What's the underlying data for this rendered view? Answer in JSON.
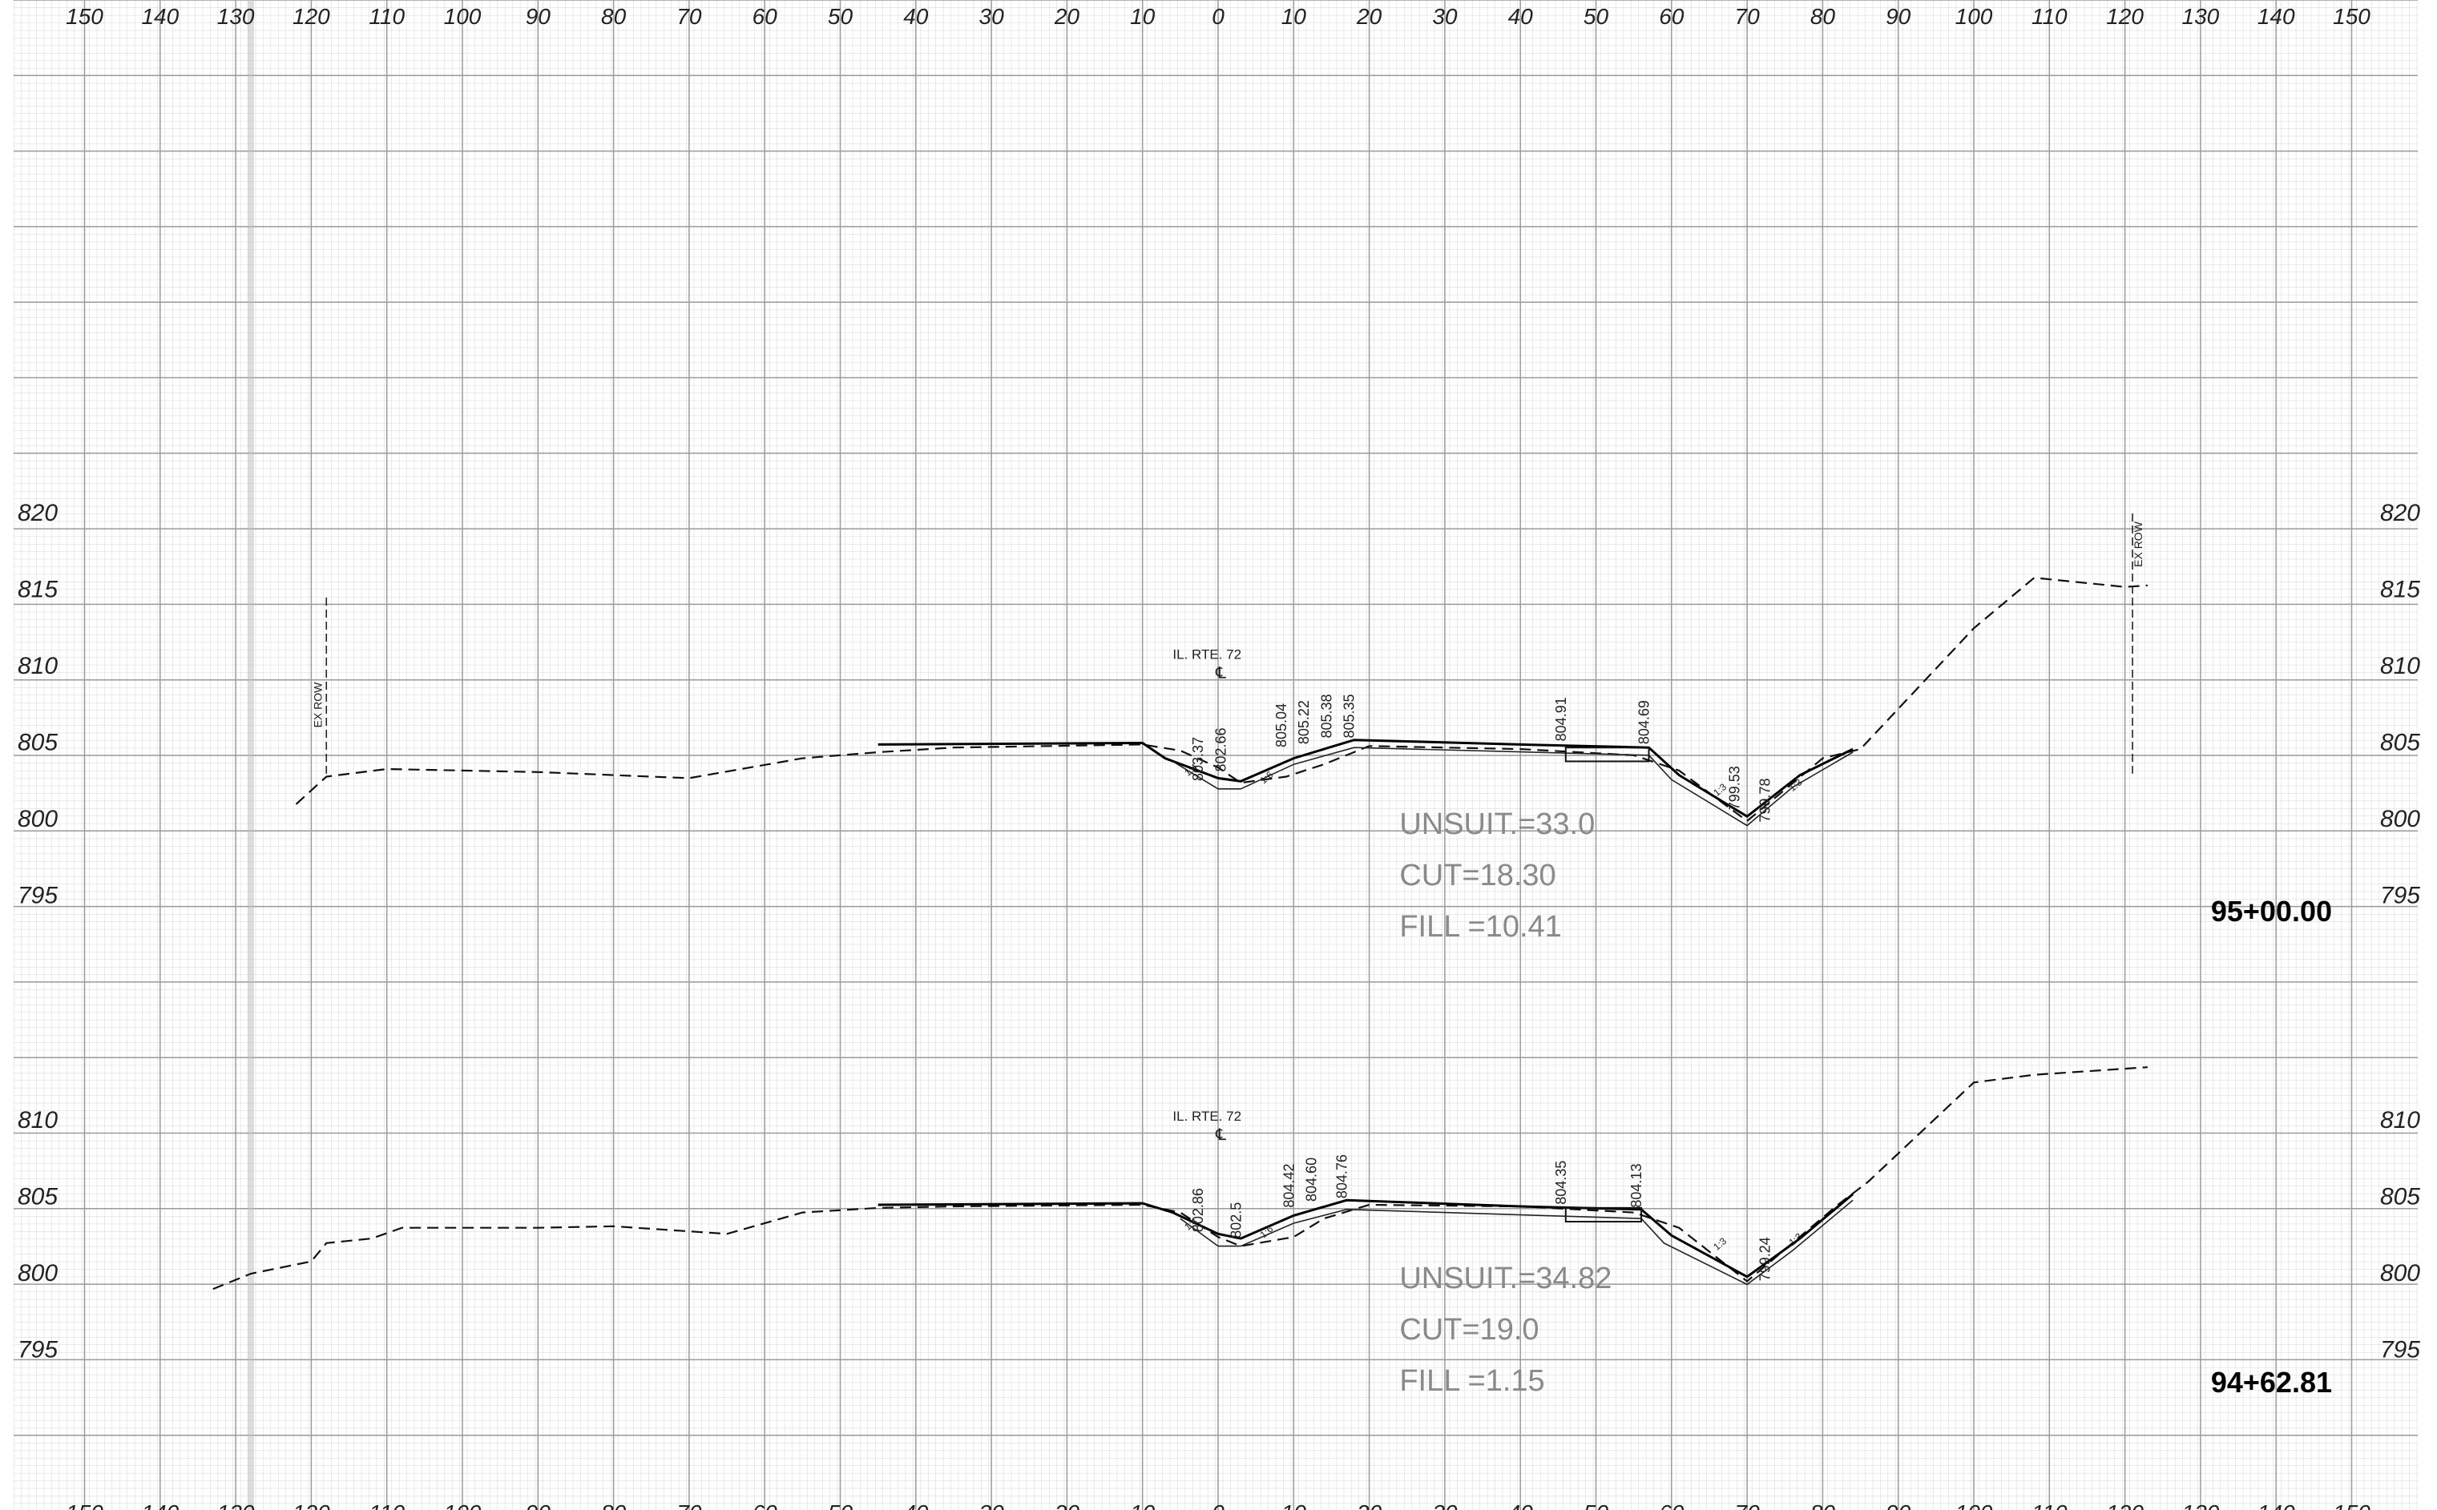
{
  "offset_axis": {
    "labels": [
      "150",
      "140",
      "130",
      "120",
      "110",
      "100",
      "90",
      "80",
      "70",
      "60",
      "50",
      "40",
      "30",
      "20",
      "10",
      "0",
      "10",
      "20",
      "30",
      "40",
      "50",
      "60",
      "70",
      "80",
      "90",
      "100",
      "110",
      "120",
      "130",
      "140",
      "150"
    ],
    "values": [
      -150,
      -140,
      -130,
      -120,
      -110,
      -100,
      -90,
      -80,
      -70,
      -60,
      -50,
      -40,
      -30,
      -20,
      -10,
      0,
      10,
      20,
      30,
      40,
      50,
      60,
      70,
      80,
      90,
      100,
      110,
      120,
      130,
      140,
      150
    ]
  },
  "sections": [
    {
      "station": "95+00.00",
      "elevation_labels": [
        "820",
        "815",
        "810",
        "805",
        "800",
        "795"
      ],
      "elevation_values": [
        820,
        815,
        810,
        805,
        800,
        795
      ],
      "centerline_label": "IL. RTE. 72",
      "centerline_symbol": "℄",
      "row_label": "EX ROW",
      "row_label_right": "EX ROW",
      "quantities": [
        "UNSUIT.=33.0",
        "CUT=18.30",
        "FILL =10.41"
      ],
      "point_labels": [
        {
          "text": "803.37",
          "offset": -2,
          "elev": 802.2
        },
        {
          "text": "802.66",
          "offset": 1,
          "elev": 802.8
        },
        {
          "text": "805.04",
          "offset": 9,
          "elev": 804.4
        },
        {
          "text": "805.22",
          "offset": 12,
          "elev": 804.6
        },
        {
          "text": "805.38",
          "offset": 15,
          "elev": 805.0
        },
        {
          "text": "805.35",
          "offset": 18,
          "elev": 805.0
        },
        {
          "text": "804.91",
          "offset": 46,
          "elev": 804.8
        },
        {
          "text": "804.69",
          "offset": 57,
          "elev": 804.6
        },
        {
          "text": "799.53",
          "offset": 69,
          "elev": 800.3
        },
        {
          "text": "799.78",
          "offset": 73,
          "elev": 799.5
        }
      ],
      "slope_labels": [
        "1:4",
        "1:6",
        "1:3",
        "1:3"
      ],
      "existing_ground": [
        [
          -122,
          801
        ],
        [
          -118,
          802.8
        ],
        [
          -110,
          803.3
        ],
        [
          -90,
          803.1
        ],
        [
          -70,
          802.7
        ],
        [
          -55,
          804.0
        ],
        [
          -45,
          804.4
        ],
        [
          -35,
          804.7
        ],
        [
          -10,
          804.9
        ],
        [
          -5,
          804.5
        ],
        [
          0,
          803.4
        ],
        [
          3,
          802.4
        ],
        [
          9,
          802.8
        ],
        [
          14,
          803.6
        ],
        [
          20,
          804.8
        ],
        [
          40,
          804.6
        ],
        [
          55,
          804.2
        ],
        [
          61,
          803.2
        ],
        [
          70,
          799.9
        ],
        [
          80,
          804.0
        ],
        [
          85,
          804.6
        ],
        [
          100,
          812.5
        ],
        [
          108,
          815.8
        ],
        [
          120,
          815.2
        ],
        [
          123,
          815.3
        ]
      ],
      "proposed_top": [
        [
          -45,
          804.9
        ],
        [
          -10,
          805.0
        ],
        [
          -7,
          804.0
        ],
        [
          0,
          802.7
        ],
        [
          3,
          802.5
        ],
        [
          10,
          804.0
        ],
        [
          18,
          805.2
        ],
        [
          40,
          804.9
        ],
        [
          57,
          804.7
        ],
        [
          61,
          802.9
        ],
        [
          70,
          800.2
        ],
        [
          77,
          802.9
        ],
        [
          84,
          804.6
        ]
      ],
      "proposed_bottom": [
        [
          -6,
          803.8
        ],
        [
          0,
          802.0
        ],
        [
          3,
          802.0
        ],
        [
          10,
          803.6
        ],
        [
          18,
          804.7
        ],
        [
          57,
          804.2
        ],
        [
          60,
          802.6
        ],
        [
          70,
          799.6
        ],
        [
          76,
          802.1
        ],
        [
          84,
          804.4
        ]
      ],
      "pavement_box": {
        "from": 46,
        "to": 57,
        "top": 804.7,
        "bottom": 803.8
      }
    },
    {
      "station": "94+62.81",
      "elevation_labels": [
        "810",
        "805",
        "800",
        "795"
      ],
      "elevation_values": [
        810,
        805,
        800,
        795
      ],
      "centerline_label": "IL. RTE. 72",
      "centerline_symbol": "℄",
      "quantities": [
        "UNSUIT.=34.82",
        "CUT=19.0",
        "FILL =1.15"
      ],
      "point_labels": [
        {
          "text": "802.86",
          "offset": -2,
          "elev": 802.4
        },
        {
          "text": "802.5",
          "offset": 3,
          "elev": 802.0
        },
        {
          "text": "804.42",
          "offset": 10,
          "elev": 804.0
        },
        {
          "text": "804.60",
          "offset": 13,
          "elev": 804.4
        },
        {
          "text": "804.76",
          "offset": 17,
          "elev": 804.6
        },
        {
          "text": "804.35",
          "offset": 46,
          "elev": 804.2
        },
        {
          "text": "804.13",
          "offset": 56,
          "elev": 804.0
        },
        {
          "text": "799.24",
          "offset": 73,
          "elev": 799.2
        }
      ],
      "slope_labels": [
        "1:4",
        "1:6",
        "1:3",
        "1:3"
      ],
      "existing_ground": [
        [
          -133,
          799
        ],
        [
          -128,
          800
        ],
        [
          -120,
          800.8
        ],
        [
          -118,
          802.0
        ],
        [
          -112,
          802.3
        ],
        [
          -108,
          803.0
        ],
        [
          -90,
          803.0
        ],
        [
          -80,
          803.1
        ],
        [
          -65,
          802.6
        ],
        [
          -55,
          804.0
        ],
        [
          -45,
          804.3
        ],
        [
          -35,
          804.4
        ],
        [
          -10,
          804.5
        ],
        [
          -5,
          804.0
        ],
        [
          0,
          802.4
        ],
        [
          3,
          801.8
        ],
        [
          10,
          802.4
        ],
        [
          14,
          803.6
        ],
        [
          20,
          804.5
        ],
        [
          40,
          804.4
        ],
        [
          55,
          804.0
        ],
        [
          61,
          803.0
        ],
        [
          70,
          799.5
        ],
        [
          82,
          804.5
        ],
        [
          86,
          806.0
        ],
        [
          100,
          812.5
        ],
        [
          108,
          813.0
        ],
        [
          123,
          813.5
        ]
      ],
      "proposed_top": [
        [
          -45,
          804.5
        ],
        [
          -10,
          804.6
        ],
        [
          -6,
          804.0
        ],
        [
          0,
          802.6
        ],
        [
          3,
          802.3
        ],
        [
          10,
          803.8
        ],
        [
          17,
          804.8
        ],
        [
          40,
          804.4
        ],
        [
          56,
          804.2
        ],
        [
          60,
          802.5
        ],
        [
          70,
          799.8
        ],
        [
          77,
          802.3
        ],
        [
          84,
          805.2
        ]
      ],
      "proposed_bottom": [
        [
          -5,
          803.6
        ],
        [
          0,
          801.8
        ],
        [
          3,
          801.8
        ],
        [
          10,
          803.3
        ],
        [
          17,
          804.2
        ],
        [
          56,
          803.6
        ],
        [
          59,
          802.0
        ],
        [
          70,
          799.3
        ],
        [
          76,
          801.5
        ],
        [
          84,
          804.8
        ]
      ],
      "pavement_box": {
        "from": 46,
        "to": 56,
        "top": 804.3,
        "bottom": 803.4
      }
    }
  ]
}
